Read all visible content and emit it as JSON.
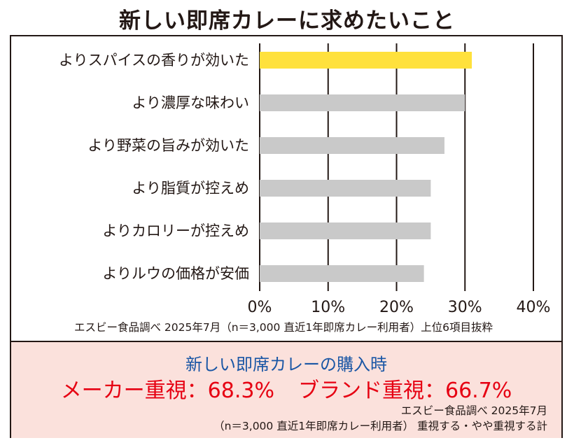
{
  "title": "新しい即席カレーに求めたいこと",
  "chart_data": {
    "type": "bar",
    "orientation": "horizontal",
    "categories": [
      "よりスパイスの香りが効いた",
      "より濃厚な味わい",
      "より野菜の旨みが効いた",
      "より脂質が控えめ",
      "よりカロリーが控えめ",
      "よりルウの価格が安価"
    ],
    "values": [
      31,
      30,
      27,
      25,
      25,
      24
    ],
    "xlim": [
      0,
      40
    ],
    "x_ticks": [
      "0%",
      "10%",
      "20%",
      "30%",
      "40%"
    ],
    "grid": true,
    "highlight_color": "#ffe13c",
    "bar_color": "#c9c9c9",
    "source": "エスビー食品調べ 2025年7月（n＝3,000 直近1年即席カレー利用者）上位6項目抜粋"
  },
  "summary": {
    "heading": "新しい即席カレーの購入時",
    "maker": "メーカー重視：68.3%",
    "brand": "ブランド重視：66.7%",
    "source_line1": "エスビー食品調べ 2025年7月",
    "source_line2": "（n＝3,000 直近1年即席カレー利用者） 重視する・やや重視する計",
    "color_heading": "#1a56a5",
    "color_values": "#e60012",
    "background": "#fbe1dc"
  }
}
